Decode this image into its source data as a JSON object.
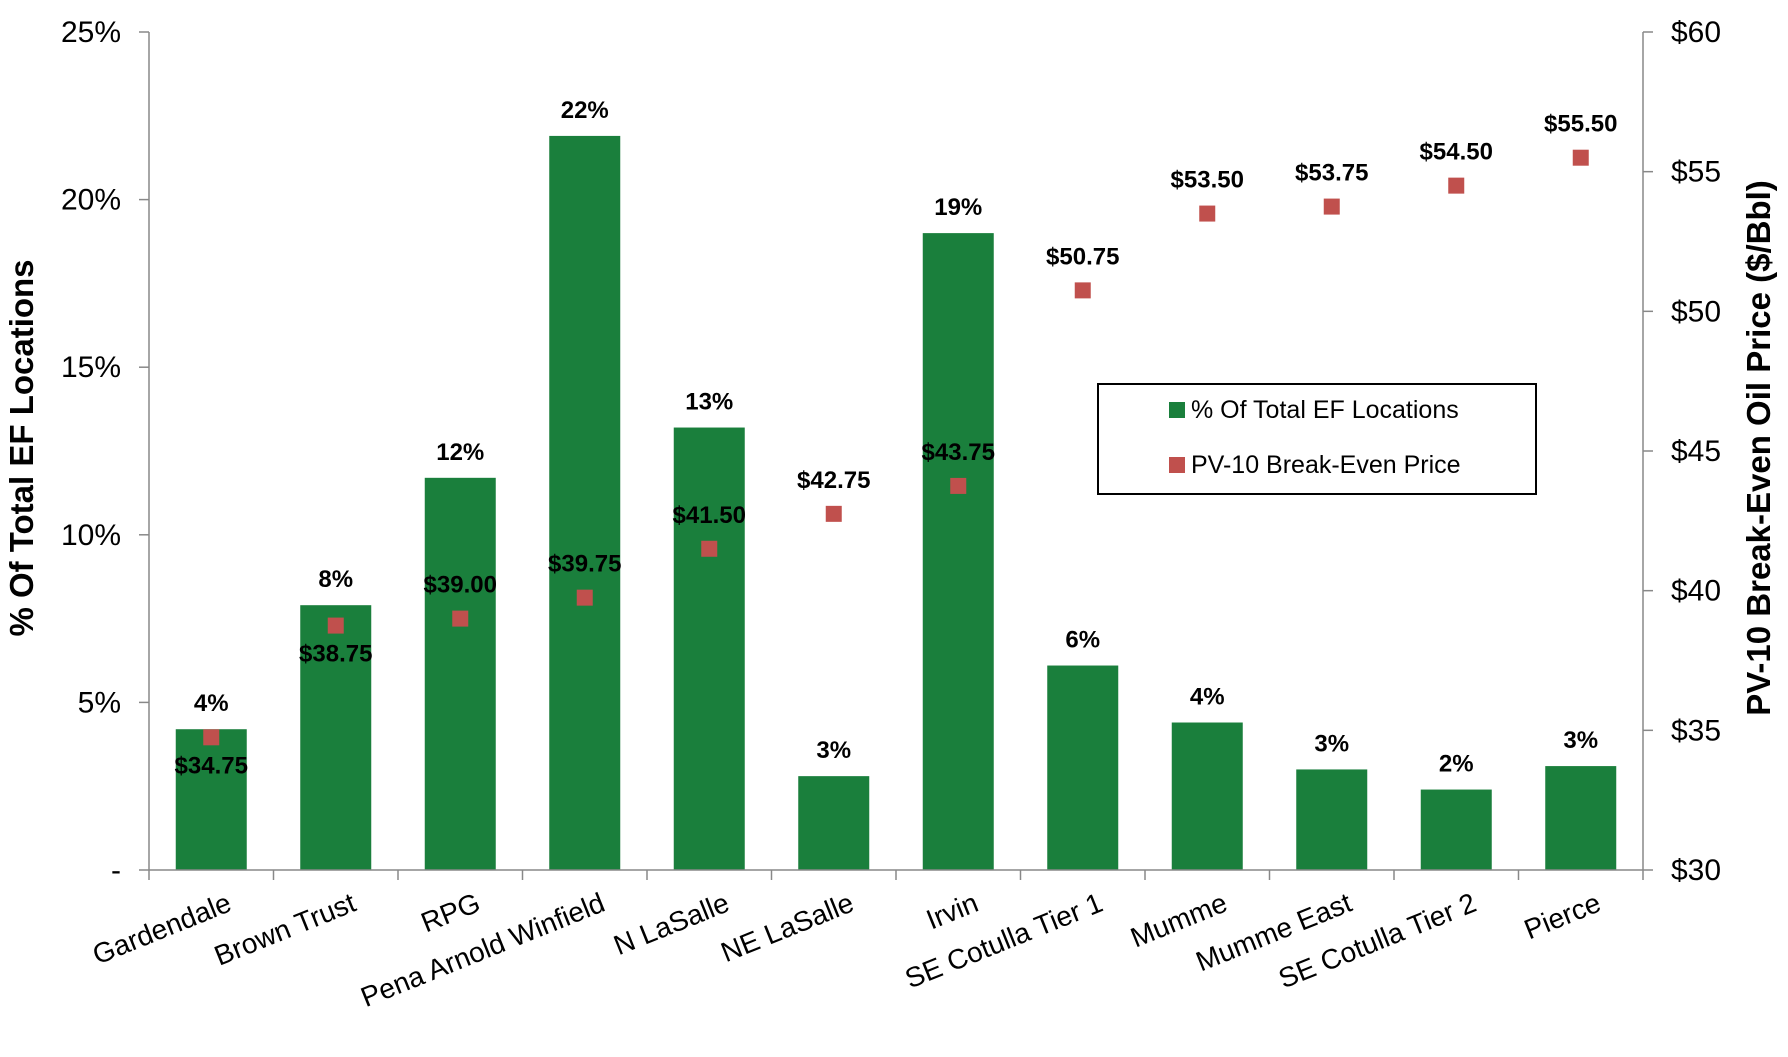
{
  "chart_data": {
    "type": "bar",
    "categories": [
      "Gardendale",
      "Brown Trust",
      "RPG",
      "Pena Arnold Winfield",
      "N LaSalle",
      "NE LaSalle",
      "Irvin",
      "SE Cotulla Tier 1",
      "Mumme",
      "Mumme East",
      "SE Cotulla Tier 2",
      "Pierce"
    ],
    "series": [
      {
        "name": "% Of Total EF Locations",
        "type": "bar",
        "axis": "left",
        "color": "#1a7f3c",
        "values": [
          4.2,
          7.9,
          11.7,
          21.9,
          13.2,
          2.8,
          19.0,
          6.1,
          4.4,
          3.0,
          2.4,
          3.1
        ],
        "labels": [
          "4%",
          "8%",
          "12%",
          "22%",
          "13%",
          "3%",
          "19%",
          "6%",
          "4%",
          "3%",
          "2%",
          "3%"
        ]
      },
      {
        "name": "PV-10 Break-Even Price",
        "type": "scatter",
        "axis": "right",
        "color": "#c0504d",
        "values": [
          34.75,
          38.75,
          39.0,
          39.75,
          41.5,
          42.75,
          43.75,
          50.75,
          53.5,
          53.75,
          54.5,
          55.5
        ],
        "labels": [
          "$34.75",
          "$38.75",
          "$39.00",
          "$39.75",
          "$41.50",
          "$42.75",
          "$43.75",
          "$50.75",
          "$53.50",
          "$53.75",
          "$54.50",
          "$55.50"
        ],
        "label_position": [
          "below",
          "below",
          "above",
          "above",
          "above",
          "above",
          "above",
          "above",
          "above",
          "above",
          "above",
          "above"
        ]
      }
    ],
    "ylabel": "% Of Total EF Locations",
    "y2label": "PV-10 Break-Even Oil Price ($/Bbl)",
    "ylim": [
      0,
      25
    ],
    "y2lim": [
      30,
      60
    ],
    "yticks": [
      0,
      5,
      10,
      15,
      20,
      25
    ],
    "ytick_labels": [
      "-",
      "5%",
      "10%",
      "15%",
      "20%",
      "25%"
    ],
    "y2ticks": [
      30,
      35,
      40,
      45,
      50,
      55,
      60
    ],
    "y2tick_labels": [
      "$30",
      "$35",
      "$40",
      "$45",
      "$50",
      "$55",
      "$60"
    ],
    "grid": false,
    "legend": {
      "position": "center-right",
      "entries": [
        "% Of Total EF Locations",
        "PV-10 Break-Even Price"
      ]
    }
  }
}
